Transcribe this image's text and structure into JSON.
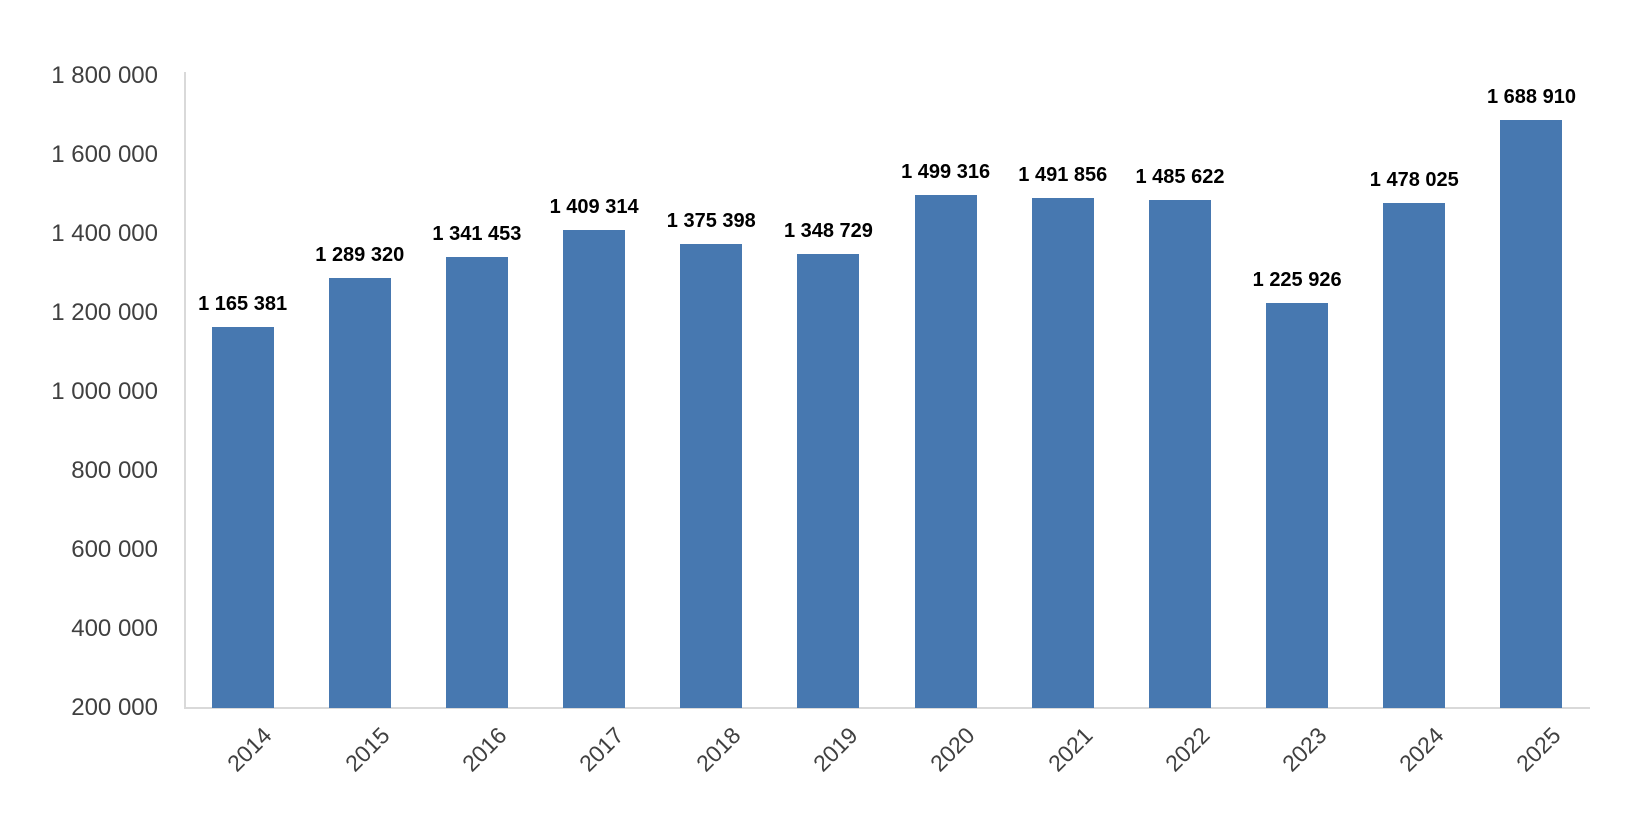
{
  "chart_data": {
    "type": "bar",
    "title": "",
    "xlabel": "",
    "ylabel": "",
    "categories": [
      "2014",
      "2015",
      "2016",
      "2017",
      "2018",
      "2019",
      "2020",
      "2021",
      "2022",
      "2023",
      "2024",
      "2025"
    ],
    "values": [
      1165381,
      1289320,
      1341453,
      1409314,
      1375398,
      1348729,
      1499316,
      1491856,
      1485622,
      1225926,
      1478025,
      1688910
    ],
    "data_labels": [
      "1 165 381",
      "1 289 320",
      "1 341 453",
      "1 409 314",
      "1 375 398",
      "1 348 729",
      "1 499 316",
      "1 491 856",
      "1 485 622",
      "1 225 926",
      "1 478 025",
      "1 688 910"
    ],
    "ylim": [
      200000,
      1800000
    ],
    "ytick_step": 200000,
    "ytick_labels": [
      "200 000",
      "400 000",
      "600 000",
      "800 000",
      "1 000 000",
      "1 200 000",
      "1 400 000",
      "1 600 000",
      "1 800 000"
    ],
    "grid": false,
    "legend_position": "none",
    "bar_color": "#4778b0",
    "value_label_color": "#000000",
    "axis_text_color": "#404040",
    "axis_line_color": "#d9d9d9"
  }
}
